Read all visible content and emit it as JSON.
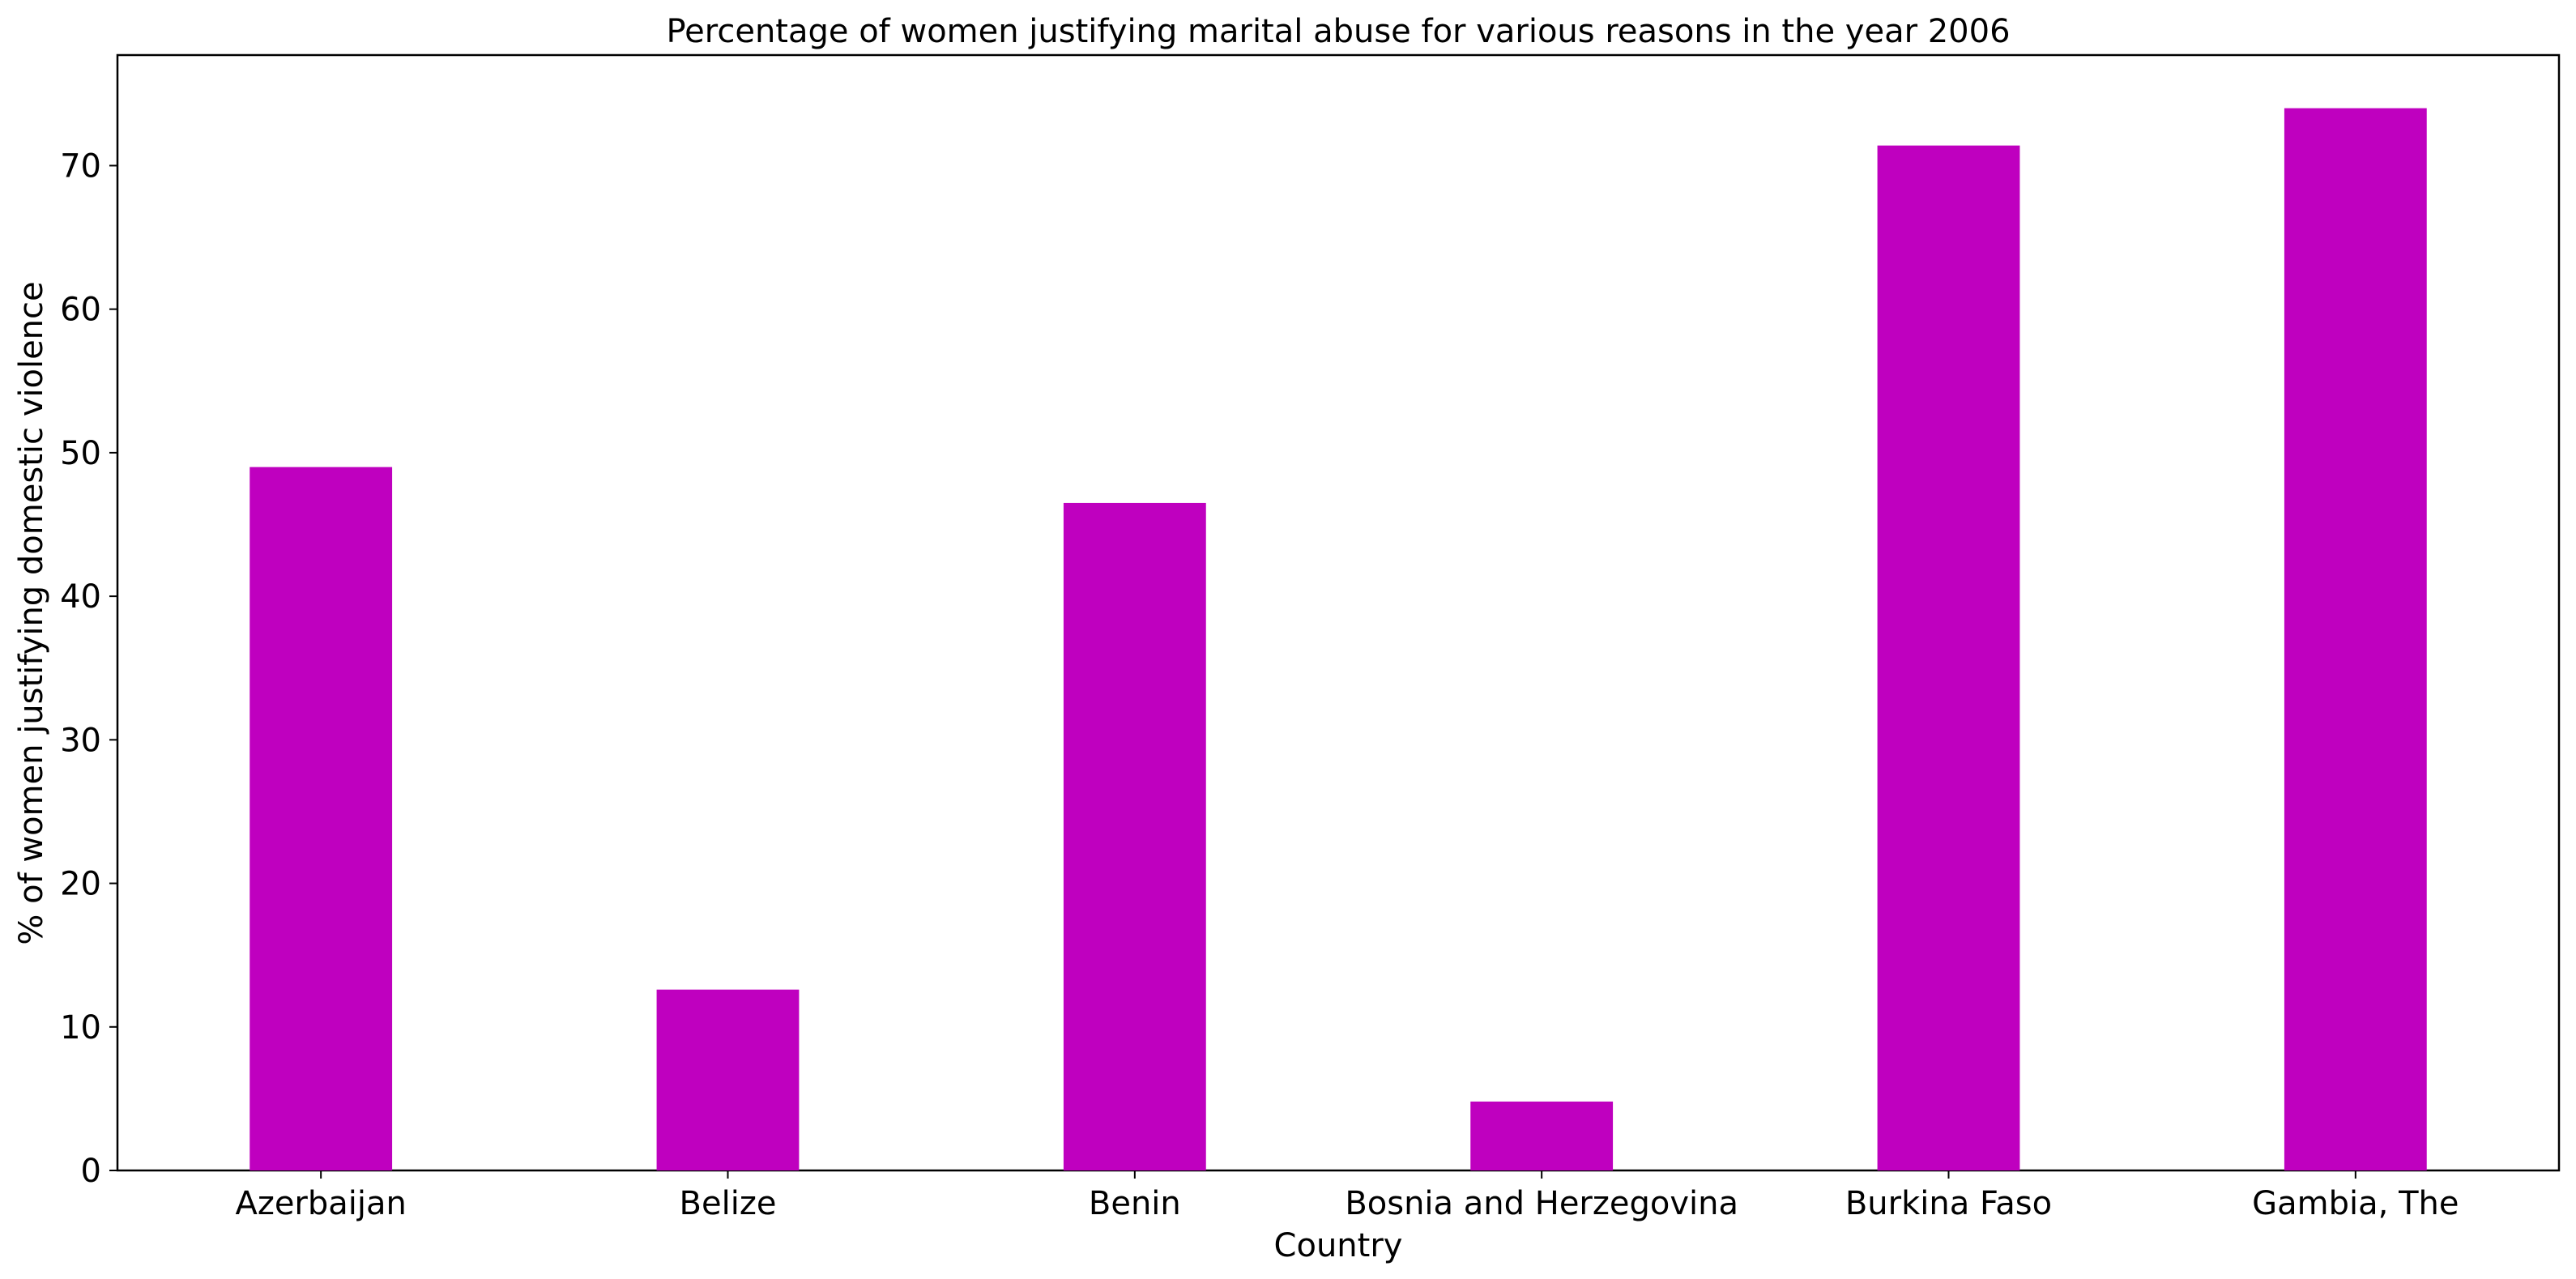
{
  "chart_data": {
    "type": "bar",
    "title": "Percentage of women justifying marital abuse for various reasons in the year 2006",
    "xlabel": "Country",
    "ylabel": "% of women justifying domestic violence",
    "categories": [
      "Azerbaijan",
      "Belize",
      "Benin",
      "Bosnia and Herzegovina",
      "Burkina Faso",
      "Gambia, The"
    ],
    "values": [
      49.0,
      12.6,
      46.5,
      4.8,
      71.4,
      74.0
    ],
    "ylim": [
      0,
      77.7
    ],
    "yticks": [
      0,
      10,
      20,
      30,
      40,
      50,
      60,
      70
    ],
    "bar_color": "#bf00bf",
    "grid": false,
    "legend": "none"
  }
}
